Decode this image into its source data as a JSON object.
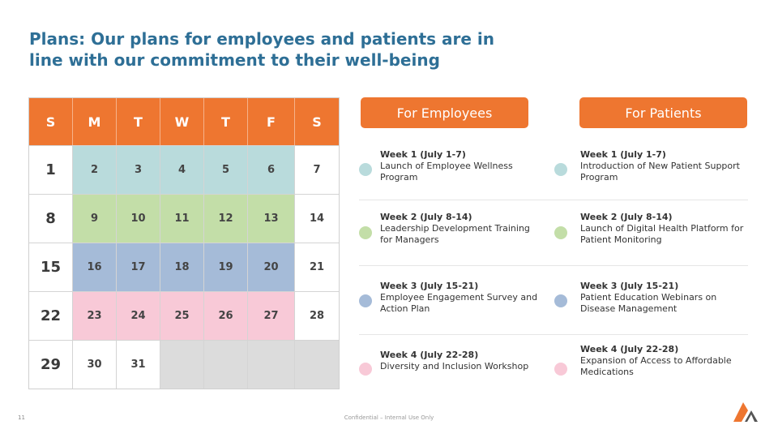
{
  "title": "Plans: Our plans for employees and patients are in line with our commitment to their well-being",
  "calendar": {
    "headers": [
      "S",
      "M",
      "T",
      "W",
      "T",
      "F",
      "S"
    ],
    "rows": [
      [
        "1",
        "2",
        "3",
        "4",
        "5",
        "6",
        "7"
      ],
      [
        "8",
        "9",
        "10",
        "11",
        "12",
        "13",
        "14"
      ],
      [
        "15",
        "16",
        "17",
        "18",
        "19",
        "20",
        "21"
      ],
      [
        "22",
        "23",
        "24",
        "25",
        "26",
        "27",
        "28"
      ],
      [
        "29",
        "30",
        "31",
        "",
        "",
        "",
        ""
      ]
    ]
  },
  "week_colors": {
    "w1": "#b9dbdc",
    "w2": "#c3dea8",
    "w3": "#a5bbd8",
    "w4": "#f8c9d7"
  },
  "accent": "#ee7630",
  "title_color": "#2e6f96",
  "employees": {
    "label": "For Employees",
    "items": [
      {
        "week": "Week 1 (July 1-7)",
        "text": "Launch of Employee Wellness Program"
      },
      {
        "week": "Week 2 (July 8-14)",
        "text": "Leadership Development Training for Managers"
      },
      {
        "week": "Week 3 (July 15-21)",
        "text": "Employee Engagement Survey and Action Plan"
      },
      {
        "week": "Week 4 (July 22-28)",
        "text": "Diversity and Inclusion Workshop"
      }
    ]
  },
  "patients": {
    "label": "For Patients",
    "items": [
      {
        "week": "Week 1 (July 1-7)",
        "text": "Introduction of New Patient Support Program"
      },
      {
        "week": "Week 2 (July 8-14)",
        "text": "Launch of Digital Health Platform for Patient Monitoring"
      },
      {
        "week": "Week 3 (July 15-21)",
        "text": "Patient Education Webinars on Disease Management"
      },
      {
        "week": "Week 4 (July 22-28)",
        "text": "Expansion of Access to Affordable Medications"
      }
    ]
  },
  "footer": {
    "page_number": "11",
    "confidential": "Confidential – Internal Use Only"
  },
  "logo_icon": "company-logo-icon"
}
